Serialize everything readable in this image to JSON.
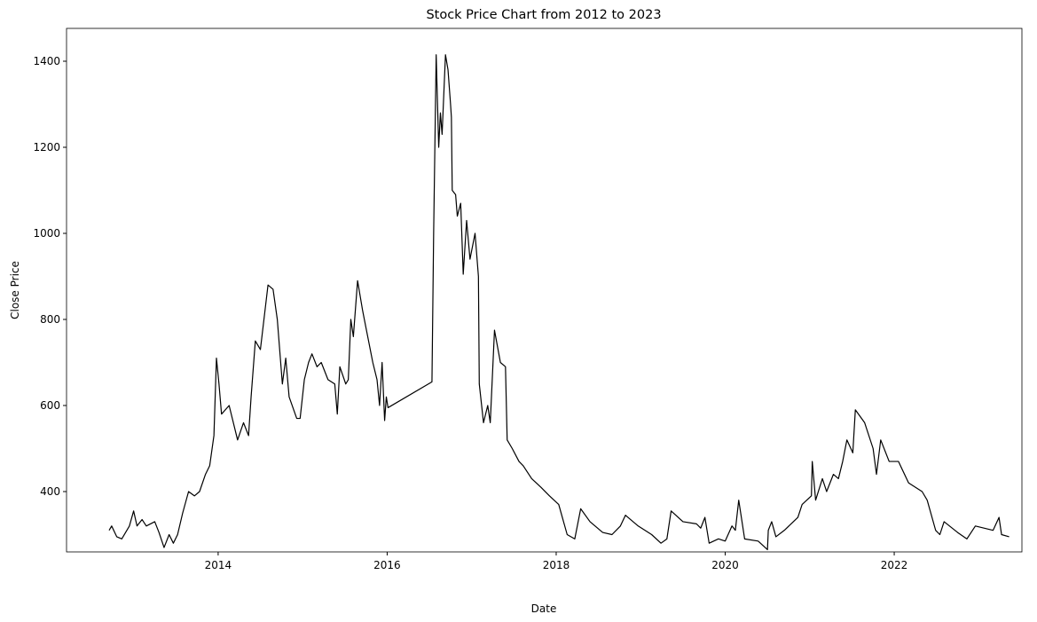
{
  "chart_data": {
    "type": "line",
    "title": "Stock Price Chart from 2012 to 2023",
    "xlabel": "Date",
    "ylabel": "Close Price",
    "x": [
      2012.71,
      2012.74,
      2012.8,
      2012.86,
      2012.95,
      2013.0,
      2013.04,
      2013.1,
      2013.15,
      2013.25,
      2013.3,
      2013.36,
      2013.42,
      2013.47,
      2013.52,
      2013.58,
      2013.65,
      2013.72,
      2013.78,
      2013.85,
      2013.9,
      2013.95,
      2013.98,
      2014.01,
      2014.04,
      2014.13,
      2014.23,
      2014.3,
      2014.36,
      2014.39,
      2014.44,
      2014.5,
      2014.59,
      2014.65,
      2014.7,
      2014.76,
      2014.8,
      2014.84,
      2014.93,
      2014.97,
      2015.02,
      2015.07,
      2015.11,
      2015.17,
      2015.22,
      2015.3,
      2015.38,
      2015.41,
      2015.44,
      2015.51,
      2015.54,
      2015.57,
      2015.6,
      2015.65,
      2015.71,
      2015.75,
      2015.83,
      2015.88,
      2015.91,
      2015.94,
      2015.97,
      2015.99,
      2016.01,
      2016.53,
      2016.55,
      2016.58,
      2016.61,
      2016.63,
      2016.65,
      2016.69,
      2016.72,
      2016.75,
      2016.76,
      2016.77,
      2016.81,
      2016.83,
      2016.87,
      2016.9,
      2016.94,
      2016.98,
      2017.04,
      2017.08,
      2017.09,
      2017.14,
      2017.19,
      2017.22,
      2017.27,
      2017.34,
      2017.4,
      2017.42,
      2017.48,
      2017.56,
      2017.61,
      2017.71,
      2017.82,
      2017.92,
      2018.03,
      2018.13,
      2018.22,
      2018.29,
      2018.4,
      2018.55,
      2018.66,
      2018.76,
      2018.82,
      2018.97,
      2019.13,
      2019.24,
      2019.31,
      2019.36,
      2019.5,
      2019.66,
      2019.71,
      2019.76,
      2019.81,
      2019.92,
      2020.0,
      2020.08,
      2020.12,
      2020.16,
      2020.23,
      2020.39,
      2020.5,
      2020.51,
      2020.55,
      2020.6,
      2020.7,
      2020.86,
      2020.91,
      2021.02,
      2021.03,
      2021.07,
      2021.15,
      2021.2,
      2021.28,
      2021.34,
      2021.39,
      2021.44,
      2021.51,
      2021.54,
      2021.65,
      2021.75,
      2021.79,
      2021.84,
      2021.94,
      2022.05,
      2022.17,
      2022.33,
      2022.39,
      2022.49,
      2022.54,
      2022.59,
      2022.75,
      2022.86,
      2022.96,
      2023.17,
      2023.24,
      2023.27,
      2023.36
    ],
    "series": [
      {
        "name": "Close",
        "color": "#000000",
        "values": [
          310,
          320,
          295,
          290,
          320,
          355,
          320,
          335,
          320,
          330,
          305,
          270,
          300,
          280,
          300,
          350,
          400,
          390,
          400,
          440,
          460,
          530,
          710,
          650,
          580,
          600,
          520,
          560,
          530,
          620,
          750,
          730,
          880,
          870,
          800,
          650,
          710,
          620,
          570,
          570,
          660,
          700,
          720,
          690,
          700,
          660,
          650,
          580,
          690,
          650,
          660,
          800,
          760,
          890,
          820,
          780,
          700,
          660,
          600,
          700,
          565,
          620,
          595,
          655,
          1000,
          1415,
          1200,
          1280,
          1230,
          1415,
          1380,
          1300,
          1270,
          1100,
          1090,
          1040,
          1070,
          905,
          1030,
          940,
          1000,
          900,
          650,
          560,
          600,
          560,
          775,
          700,
          690,
          520,
          500,
          470,
          460,
          430,
          410,
          390,
          370,
          300,
          290,
          360,
          330,
          305,
          300,
          320,
          345,
          320,
          300,
          280,
          290,
          355,
          330,
          325,
          315,
          340,
          280,
          290,
          285,
          320,
          310,
          380,
          290,
          285,
          265,
          310,
          330,
          295,
          310,
          340,
          370,
          390,
          470,
          380,
          430,
          400,
          440,
          430,
          470,
          520,
          490,
          590,
          560,
          500,
          440,
          520,
          470,
          470,
          420,
          400,
          380,
          310,
          300,
          330,
          305,
          290,
          320,
          310,
          340,
          300,
          295
        ]
      }
    ],
    "xlim": [
      2012.206,
      2023.511
    ],
    "xticks": [
      2014,
      2016,
      2018,
      2020,
      2022
    ],
    "ylim": [
      259.8,
      1476.3
    ],
    "yticks": [
      400,
      600,
      800,
      1000,
      1200,
      1400
    ]
  }
}
